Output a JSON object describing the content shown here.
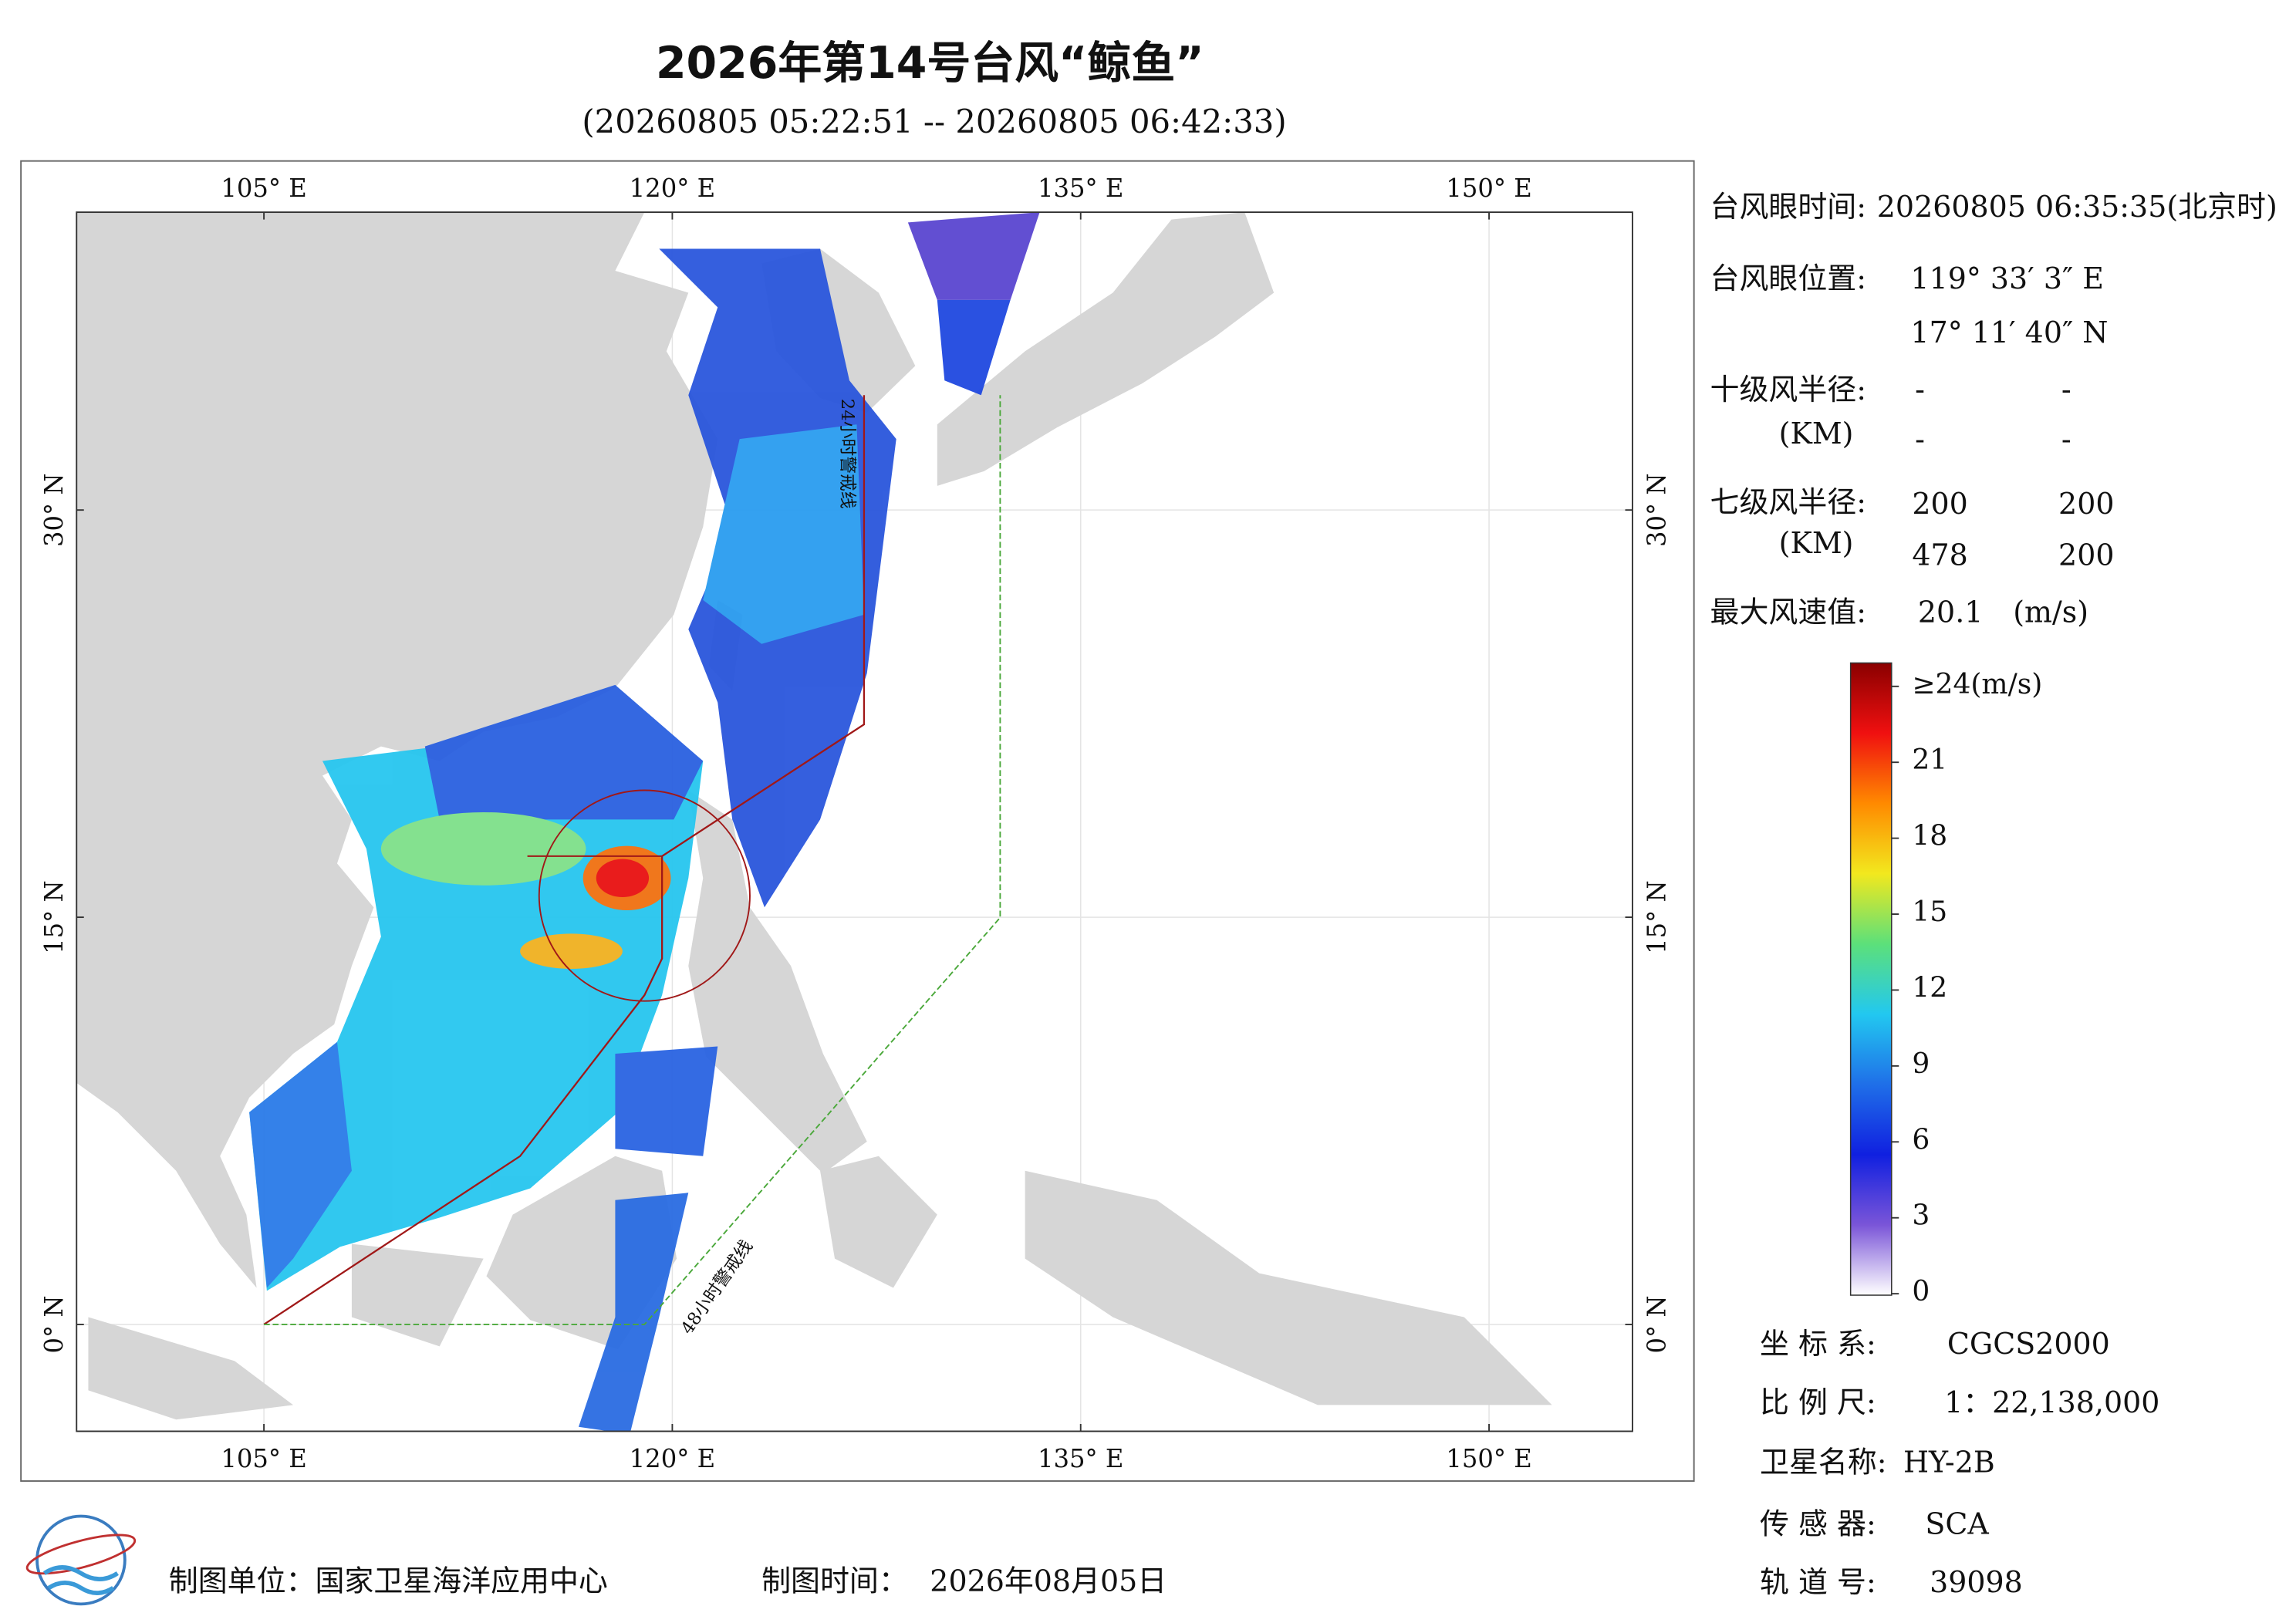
{
  "header": {
    "title": "2026年第14号台风“鲸鱼”",
    "subtitle": "(20260805 05:22:51 -- 20260805 06:42:33)"
  },
  "map": {
    "lon_ticks": [
      {
        "value": 105,
        "label": "105° E"
      },
      {
        "value": 120,
        "label": "120° E"
      },
      {
        "value": 135,
        "label": "135° E"
      },
      {
        "value": 150,
        "label": "150° E"
      }
    ],
    "lat_ticks": [
      {
        "value": 0,
        "label": "0° N"
      },
      {
        "value": 15,
        "label": "15° N"
      },
      {
        "value": 30,
        "label": "30° N"
      }
    ],
    "warning_24h": "24小时警戒线",
    "warning_48h": "48小时警戒线"
  },
  "info": {
    "eye_time_label": "台风眼时间:",
    "eye_time": "20260805 06:35:35(北京时)",
    "eye_position_label": "台风眼位置:",
    "eye_lon": "119° 33′ 3″ E",
    "eye_lat": "17° 11′ 40″ N",
    "r10_label": "十级风半径:",
    "r10_unit": "(KM)",
    "r10_values": [
      "-",
      "-",
      "-",
      "-"
    ],
    "r7_label": "七级风半径:",
    "r7_unit": "(KM)",
    "r7_values": [
      200,
      200,
      478,
      200
    ],
    "max_wind_label": "最大风速值:",
    "max_wind": 20.1,
    "max_wind_unit": "(m/s)"
  },
  "colorbar": {
    "range": [
      0,
      24
    ],
    "ticks": [
      {
        "value": 24,
        "label": "≥24(m/s)"
      },
      21,
      18,
      15,
      12,
      9,
      6,
      3,
      0
    ],
    "colors": [
      "#ffffff",
      "#7a55d8",
      "#1020e0",
      "#1f6fe8",
      "#22c8f0",
      "#5ce07a",
      "#f2e81e",
      "#ff8a00",
      "#f01010",
      "#8a0000"
    ]
  },
  "metadata": {
    "crs_label": "坐 标 系:",
    "crs": "CGCS2000",
    "scale_label": "比 例 尺:",
    "scale": "1：22,138,000",
    "satellite_label": "卫星名称:",
    "satellite": "HY-2B",
    "sensor_label": "传 感 器:",
    "sensor": "SCA",
    "orbit_label": "轨 道 号:",
    "orbit": 39098
  },
  "footer": {
    "unit": "制图单位：国家卫星海洋应用中心",
    "time_label": "制图时间：",
    "date": "2026年08月05日"
  }
}
